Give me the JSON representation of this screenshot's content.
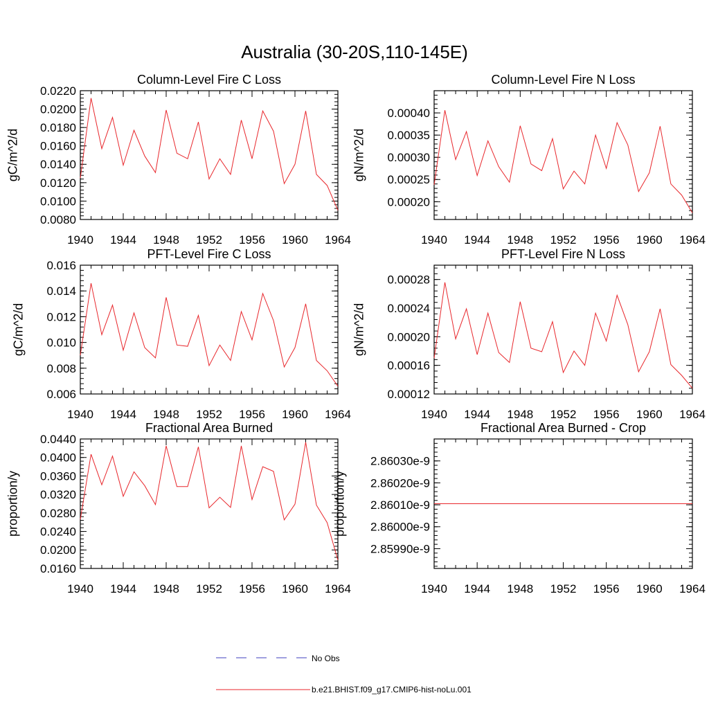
{
  "figure": {
    "title": "Australia (30-20S,110-145E)",
    "legend": [
      {
        "label": "No Obs",
        "color": "#3f3fbf",
        "style": "dashed"
      },
      {
        "label": "b.e21.BHIST.f09_g17.CMIP6-hist-noLu.001",
        "color": "#e8262b",
        "style": "solid"
      }
    ]
  },
  "chart_data": [
    {
      "type": "line",
      "title": "Column-Level Fire C Loss",
      "ylabel": "gC/m^2/d",
      "xlim": [
        1940,
        1964
      ],
      "ylim": [
        0.008,
        0.022
      ],
      "xticks": [
        "1940",
        "1944",
        "1948",
        "1952",
        "1956",
        "1960",
        "1964"
      ],
      "yticks": [
        0.008,
        0.01,
        0.012,
        0.014,
        0.016,
        0.018,
        0.02,
        0.022
      ],
      "ytick_labels": [
        "0.0080",
        "0.0100",
        "0.0120",
        "0.0140",
        "0.0160",
        "0.0180",
        "0.0200",
        "0.0220"
      ],
      "series": [
        {
          "name": "b.e21.BHIST.f09_g17.CMIP6-hist-noLu.001",
          "color": "#e8262b",
          "x": [
            1940,
            1941,
            1942,
            1943,
            1944,
            1945,
            1946,
            1947,
            1948,
            1949,
            1950,
            1951,
            1952,
            1953,
            1954,
            1955,
            1956,
            1957,
            1958,
            1959,
            1960,
            1961,
            1962,
            1963,
            1964
          ],
          "y": [
            0.0125,
            0.0212,
            0.0157,
            0.0191,
            0.0139,
            0.0177,
            0.0149,
            0.0131,
            0.0199,
            0.0152,
            0.0146,
            0.0186,
            0.0124,
            0.0146,
            0.0129,
            0.0188,
            0.0146,
            0.0198,
            0.0176,
            0.0119,
            0.014,
            0.0198,
            0.0129,
            0.0117,
            0.009
          ]
        }
      ]
    },
    {
      "type": "line",
      "title": "Column-Level Fire N Loss",
      "ylabel": "gN/m^2/d",
      "xlim": [
        1940,
        1964
      ],
      "ylim": [
        0.00016,
        0.00045
      ],
      "xticks": [
        "1940",
        "1944",
        "1948",
        "1952",
        "1956",
        "1960",
        "1964"
      ],
      "yticks": [
        0.0002,
        0.00025,
        0.0003,
        0.00035,
        0.0004
      ],
      "ytick_labels": [
        "0.00020",
        "0.00025",
        "0.00030",
        "0.00035",
        "0.00040"
      ],
      "series": [
        {
          "name": "b.e21.BHIST.f09_g17.CMIP6-hist-noLu.001",
          "color": "#e8262b",
          "x": [
            1940,
            1941,
            1942,
            1943,
            1944,
            1945,
            1946,
            1947,
            1948,
            1949,
            1950,
            1951,
            1952,
            1953,
            1954,
            1955,
            1956,
            1957,
            1958,
            1959,
            1960,
            1961,
            1962,
            1963,
            1964
          ],
          "y": [
            0.000238,
            0.000406,
            0.000295,
            0.000358,
            0.000259,
            0.000337,
            0.000279,
            0.000244,
            0.000371,
            0.000285,
            0.00027,
            0.000342,
            0.000229,
            0.000269,
            0.00024,
            0.00035,
            0.000275,
            0.000378,
            0.000328,
            0.000223,
            0.000265,
            0.00037,
            0.00024,
            0.000215,
            0.000175
          ]
        }
      ]
    },
    {
      "type": "line",
      "title": "PFT-Level Fire C Loss",
      "ylabel": "gC/m^2/d",
      "xlim": [
        1940,
        1964
      ],
      "ylim": [
        0.006,
        0.016
      ],
      "xticks": [
        "1940",
        "1944",
        "1948",
        "1952",
        "1956",
        "1960",
        "1964"
      ],
      "yticks": [
        0.006,
        0.008,
        0.01,
        0.012,
        0.014,
        0.016
      ],
      "ytick_labels": [
        "0.006",
        "0.008",
        "0.010",
        "0.012",
        "0.014",
        "0.016"
      ],
      "series": [
        {
          "name": "b.e21.BHIST.f09_g17.CMIP6-hist-noLu.001",
          "color": "#e8262b",
          "x": [
            1940,
            1941,
            1942,
            1943,
            1944,
            1945,
            1946,
            1947,
            1948,
            1949,
            1950,
            1951,
            1952,
            1953,
            1954,
            1955,
            1956,
            1957,
            1958,
            1959,
            1960,
            1961,
            1962,
            1963,
            1964
          ],
          "y": [
            0.009,
            0.0146,
            0.0106,
            0.0129,
            0.0094,
            0.0123,
            0.0096,
            0.0088,
            0.0135,
            0.0098,
            0.0097,
            0.0121,
            0.0082,
            0.0098,
            0.0086,
            0.0124,
            0.0102,
            0.0138,
            0.0117,
            0.0081,
            0.0096,
            0.013,
            0.0086,
            0.0078,
            0.0066
          ]
        }
      ]
    },
    {
      "type": "line",
      "title": "PFT-Level Fire N Loss",
      "ylabel": "gN/m^2/d",
      "xlim": [
        1940,
        1964
      ],
      "ylim": [
        0.00012,
        0.0003
      ],
      "xticks": [
        "1940",
        "1944",
        "1948",
        "1952",
        "1956",
        "1960",
        "1964"
      ],
      "yticks": [
        0.00012,
        0.00016,
        0.0002,
        0.00024,
        0.00028
      ],
      "ytick_labels": [
        "0.00012",
        "0.00016",
        "0.00020",
        "0.00024",
        "0.00028"
      ],
      "series": [
        {
          "name": "b.e21.BHIST.f09_g17.CMIP6-hist-noLu.001",
          "color": "#e8262b",
          "x": [
            1940,
            1941,
            1942,
            1943,
            1944,
            1945,
            1946,
            1947,
            1948,
            1949,
            1950,
            1951,
            1952,
            1953,
            1954,
            1955,
            1956,
            1957,
            1958,
            1959,
            1960,
            1961,
            1962,
            1963,
            1964
          ],
          "y": [
            0.00017,
            0.000276,
            0.000197,
            0.000239,
            0.000175,
            0.000233,
            0.000178,
            0.000164,
            0.000249,
            0.000184,
            0.000179,
            0.000221,
            0.00015,
            0.00018,
            0.00016,
            0.000233,
            0.000194,
            0.000258,
            0.000217,
            0.000151,
            0.000179,
            0.000239,
            0.000161,
            0.000146,
            0.000128
          ]
        }
      ]
    },
    {
      "type": "line",
      "title": "Fractional Area Burned",
      "ylabel": "proportion/y",
      "xlim": [
        1940,
        1964
      ],
      "ylim": [
        0.016,
        0.044
      ],
      "xticks": [
        "1940",
        "1944",
        "1948",
        "1952",
        "1956",
        "1960",
        "1964"
      ],
      "yticks": [
        0.016,
        0.02,
        0.024,
        0.028,
        0.032,
        0.036,
        0.04,
        0.044
      ],
      "ytick_labels": [
        "0.0160",
        "0.0200",
        "0.0240",
        "0.0280",
        "0.0320",
        "0.0360",
        "0.0400",
        "0.0440"
      ],
      "series": [
        {
          "name": "b.e21.BHIST.f09_g17.CMIP6-hist-noLu.001",
          "color": "#e8262b",
          "x": [
            1940,
            1941,
            1942,
            1943,
            1944,
            1945,
            1946,
            1947,
            1948,
            1949,
            1950,
            1951,
            1952,
            1953,
            1954,
            1955,
            1956,
            1957,
            1958,
            1959,
            1960,
            1961,
            1962,
            1963,
            1964
          ],
          "y": [
            0.0266,
            0.0407,
            0.0341,
            0.0403,
            0.0316,
            0.0369,
            0.0339,
            0.0298,
            0.0425,
            0.0337,
            0.0337,
            0.0423,
            0.0291,
            0.0314,
            0.0292,
            0.0425,
            0.0309,
            0.038,
            0.037,
            0.0265,
            0.0299,
            0.0433,
            0.0297,
            0.0259,
            0.0178
          ]
        }
      ]
    },
    {
      "type": "line",
      "title": "Fractional Area Burned - Crop",
      "ylabel": "proportion/y",
      "xlim": [
        1940,
        1964
      ],
      "ylim": [
        2.85981e-09,
        2.8604e-09
      ],
      "xticks": [
        "1940",
        "1944",
        "1948",
        "1952",
        "1956",
        "1960",
        "1964"
      ],
      "yticks": [
        2.8599e-09,
        2.86e-09,
        2.8601e-09,
        2.8602e-09,
        2.8603e-09
      ],
      "ytick_labels": [
        "2.85990e-9",
        "2.86000e-9",
        "2.86010e-9",
        "2.86020e-9",
        "2.86030e-9"
      ],
      "series": [
        {
          "name": "b.e21.BHIST.f09_g17.CMIP6-hist-noLu.001",
          "color": "#e8262b",
          "x": [
            1940,
            1964
          ],
          "y": [
            2.860105e-09,
            2.860105e-09
          ]
        }
      ]
    }
  ]
}
